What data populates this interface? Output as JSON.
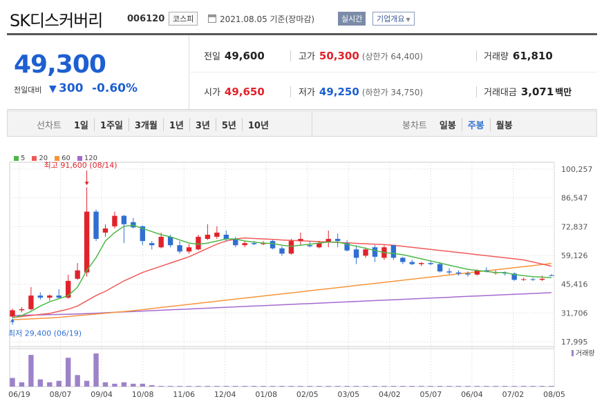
{
  "header": {
    "name": "SK디스커버리",
    "code": "006120",
    "market": "코스피",
    "date": "2021.08.05 기준(장마감)",
    "live": "실시간",
    "info": "기업개요"
  },
  "price": {
    "current": "49,300",
    "change_label": "전일대비",
    "change_arrow": "▼",
    "change": "300",
    "change_pct": "-0.60%"
  },
  "stats": {
    "prev": {
      "label": "전일",
      "value": "49,600"
    },
    "high": {
      "label": "고가",
      "value": "50,300",
      "sub": "(상한가 64,400)"
    },
    "volume": {
      "label": "거래량",
      "value": "61,810"
    },
    "open": {
      "label": "시가",
      "value": "49,650"
    },
    "low": {
      "label": "저가",
      "value": "49,250",
      "sub": "(하한가 34,750)"
    },
    "amount": {
      "label": "거래대금",
      "value": "3,071",
      "unit": "백만"
    }
  },
  "controls": {
    "line_label": "선차트",
    "line_items": [
      "1일",
      "1주일",
      "3개월",
      "1년",
      "3년",
      "5년",
      "10년"
    ],
    "candle_label": "봉차트",
    "candle_items": [
      "일봉",
      "주봉",
      "월봉"
    ],
    "candle_selected": 1
  },
  "colors": {
    "up": "#e0232b",
    "down": "#2f6fd1",
    "ma5": "#4cb848",
    "ma20": "#ee5a57",
    "ma60": "#f7943a",
    "ma120": "#a569d1",
    "volume": "#9d82c9"
  },
  "chart_data": {
    "type": "candlestick",
    "legend": [
      "5",
      "20",
      "60",
      "120"
    ],
    "y_ticks": [
      "100,257",
      "86,547",
      "72,837",
      "59,126",
      "45,416",
      "31,706",
      "17,995"
    ],
    "ylim": [
      17995,
      100257
    ],
    "x_ticks": [
      "06/19",
      "08/07",
      "09/04",
      "10/08",
      "11/06",
      "12/04",
      "01/08",
      "02/05",
      "03/05",
      "04/02",
      "05/07",
      "06/04",
      "07/02",
      "08/05"
    ],
    "annotations": {
      "high": {
        "text": "최고 91,600 (08/14)",
        "value": 91600,
        "index": 8
      },
      "low": {
        "text": "최저 29,400 (06/19)",
        "value": 29400,
        "index": 0
      }
    },
    "volume_label": "거래량",
    "candles": [
      [
        30000,
        33800,
        29400,
        33000
      ],
      [
        33000,
        34500,
        32000,
        33500
      ],
      [
        33500,
        44000,
        33000,
        40000
      ],
      [
        40000,
        41500,
        38000,
        39000
      ],
      [
        39000,
        40500,
        37500,
        40000
      ],
      [
        40000,
        43000,
        38500,
        39000
      ],
      [
        39000,
        50000,
        38500,
        47000
      ],
      [
        48000,
        55500,
        47500,
        52000
      ],
      [
        51000,
        91600,
        49000,
        80000
      ],
      [
        80000,
        81000,
        66000,
        67000
      ],
      [
        70000,
        74000,
        68000,
        72000
      ],
      [
        73000,
        80000,
        72000,
        78000
      ],
      [
        78000,
        78500,
        65000,
        74000
      ],
      [
        75000,
        77000,
        72000,
        72500
      ],
      [
        73000,
        73500,
        64000,
        66000
      ],
      [
        65000,
        66000,
        62000,
        64000
      ],
      [
        63000,
        70000,
        62500,
        68000
      ],
      [
        68000,
        69000,
        63000,
        64000
      ],
      [
        64000,
        66000,
        60000,
        61000
      ],
      [
        61000,
        64500,
        60000,
        63000
      ],
      [
        62000,
        69000,
        61500,
        68000
      ],
      [
        67000,
        74000,
        66500,
        69000
      ],
      [
        68000,
        73000,
        67000,
        70000
      ],
      [
        69000,
        71000,
        66000,
        67000
      ],
      [
        67000,
        68000,
        63000,
        64000
      ],
      [
        64000,
        66000,
        63000,
        65000
      ],
      [
        65000,
        66000,
        64000,
        64500
      ],
      [
        64500,
        66000,
        64000,
        65000
      ],
      [
        66000,
        66500,
        62000,
        62500
      ],
      [
        62500,
        63500,
        59000,
        60000
      ],
      [
        60000,
        67000,
        59500,
        66000
      ],
      [
        66000,
        70000,
        64000,
        67000
      ],
      [
        64000,
        66000,
        63000,
        63500
      ],
      [
        63000,
        66000,
        62500,
        65000
      ],
      [
        65500,
        71000,
        63000,
        67000
      ],
      [
        67000,
        69500,
        63000,
        66000
      ],
      [
        65000,
        66500,
        61000,
        61500
      ],
      [
        62000,
        64000,
        55000,
        58000
      ],
      [
        59000,
        63000,
        58000,
        62000
      ],
      [
        63000,
        64000,
        56000,
        58500
      ],
      [
        58000,
        64000,
        57000,
        63000
      ],
      [
        64000,
        64000,
        57000,
        58000
      ],
      [
        58000,
        58500,
        55000,
        56000
      ],
      [
        56000,
        57000,
        54500,
        55000
      ],
      [
        55000,
        56000,
        54000,
        55500
      ],
      [
        55500,
        56500,
        54500,
        55000
      ],
      [
        55000,
        56000,
        51000,
        51500
      ],
      [
        51500,
        53000,
        50000,
        51000
      ],
      [
        51000,
        52000,
        49500,
        50500
      ],
      [
        50500,
        51500,
        49000,
        50000
      ],
      [
        50000,
        52500,
        49500,
        52000
      ],
      [
        52000,
        53500,
        51000,
        51500
      ],
      [
        51000,
        52000,
        50000,
        51000
      ],
      [
        51000,
        51500,
        49500,
        50500
      ],
      [
        50500,
        51000,
        47000,
        47500
      ],
      [
        47500,
        48500,
        47000,
        47800
      ],
      [
        47800,
        48500,
        47000,
        47500
      ],
      [
        47500,
        49500,
        47000,
        48000
      ],
      [
        49650,
        50300,
        49250,
        49300
      ]
    ],
    "ma5": [
      29400,
      30500,
      32500,
      35000,
      37000,
      38500,
      40000,
      44000,
      52000,
      58000,
      66000,
      70000,
      73000,
      73500,
      72000,
      70500,
      69000,
      68000,
      66500,
      65000,
      64500,
      65000,
      66000,
      67000,
      67000,
      66000,
      65500,
      65000,
      64800,
      64000,
      63500,
      64000,
      64500,
      65000,
      65500,
      65500,
      64500,
      63500,
      62500,
      61500,
      60500,
      60000,
      59500,
      58500,
      57500,
      56500,
      55500,
      54500,
      53500,
      52500,
      52000,
      51500,
      51000,
      51000,
      50000,
      49500,
      49000,
      48800,
      48500
    ],
    "ma20": [
      29500,
      30000,
      30500,
      31000,
      31500,
      32500,
      33500,
      35000,
      37500,
      40000,
      42000,
      44500,
      47000,
      49000,
      51000,
      52500,
      54000,
      55500,
      57000,
      58500,
      60500,
      62500,
      64500,
      66000,
      67000,
      67500,
      67200,
      67000,
      66800,
      66500,
      66300,
      66100,
      65900,
      65700,
      65500,
      65300,
      65100,
      64900,
      64700,
      64500,
      64300,
      64000,
      63500,
      63000,
      62500,
      62000,
      61500,
      61000,
      60500,
      60000,
      59500,
      59000,
      58500,
      58000,
      57500,
      57000,
      56000,
      55000,
      54000
    ],
    "ma60": [
      28500,
      28700,
      28900,
      29100,
      29300,
      29600,
      30000,
      30400,
      30800,
      31200,
      31600,
      32000,
      32400,
      32800,
      33300,
      33800,
      34300,
      34800,
      35300,
      35800,
      36300,
      36800,
      37300,
      37800,
      38300,
      38800,
      39300,
      39800,
      40300,
      40800,
      41300,
      41800,
      42300,
      42800,
      43300,
      43800,
      44300,
      44800,
      45300,
      45800,
      46300,
      46800,
      47300,
      47800,
      48300,
      48800,
      49300,
      49800,
      50300,
      50800,
      51300,
      51800,
      52300,
      52800,
      53300,
      53800,
      54300,
      54800,
      55300
    ],
    "ma120": [
      30500,
      30600,
      30700,
      30800,
      30900,
      31000,
      31100,
      31200,
      31400,
      31600,
      31800,
      32000,
      32200,
      32400,
      32600,
      32800,
      33000,
      33200,
      33400,
      33600,
      33800,
      34000,
      34200,
      34400,
      34600,
      34800,
      35000,
      35200,
      35400,
      35600,
      35800,
      36000,
      36200,
      36400,
      36600,
      36800,
      37000,
      37200,
      37400,
      37600,
      37800,
      38000,
      38200,
      38400,
      38600,
      38800,
      39000,
      39200,
      39400,
      39600,
      39800,
      40000,
      40200,
      40400,
      40600,
      40800,
      41000,
      41200,
      41400
    ],
    "volume": [
      6,
      3,
      22,
      5,
      3,
      4,
      20,
      8,
      4,
      23,
      3,
      2,
      3,
      2,
      2,
      1,
      0.5,
      0.5,
      0.5,
      0.5,
      0.5,
      0.5,
      0.5,
      0.5,
      0.5,
      0.5,
      0.5,
      0.5,
      0.5,
      0.5,
      0.5,
      0.5,
      0.5,
      0.5,
      0.5,
      0.5,
      0.5,
      0.5,
      0.5,
      0.5,
      0.5,
      0.5,
      0.5,
      0.5,
      0.5,
      0.5,
      0.5,
      0.5,
      0.5,
      0.5,
      0.5,
      0.5,
      0.5,
      0.5,
      0.5,
      0.5,
      0.5,
      0.5,
      0.5
    ]
  }
}
